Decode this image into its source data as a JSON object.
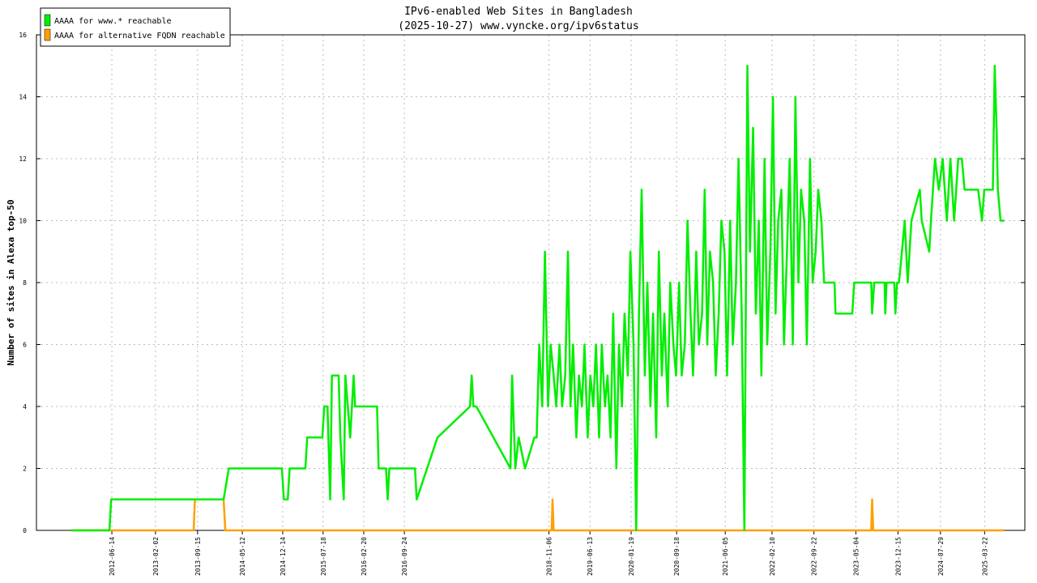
{
  "chart_data": {
    "type": "line",
    "title": "IPv6-enabled Web Sites in Bangladesh",
    "subtitle": "(2025-10-27) www.vyncke.org/ipv6status",
    "y_label": "Number of sites in Alexa top-50",
    "legend": "upper left",
    "grid": true,
    "xlim": [
      "2011-05-08",
      "2025-10-23"
    ],
    "xticks": [
      "2012-06-14",
      "2013-02-02",
      "2013-09-15",
      "2014-05-12",
      "2014-12-14",
      "2015-07-18",
      "2016-02-20",
      "2016-09-24",
      "2018-11-06",
      "2019-06-13",
      "2020-01-19",
      "2020-09-18",
      "2021-06-05",
      "2022-02-10",
      "2022-09-22",
      "2023-05-04",
      "2023-12-15",
      "2024-07-29",
      "2025-03-22"
    ],
    "ylim": [
      0,
      16
    ],
    "yticks": [
      0,
      2,
      4,
      6,
      8,
      10,
      12,
      14,
      16
    ],
    "series": [
      {
        "name": "AAAA for www.* reachable",
        "color": "#00ee00",
        "x": [
          "2011-11-10",
          "2012-06-01",
          "2012-06-10",
          "2014-02-01",
          "2014-03-01",
          "2014-12-10",
          "2014-12-20",
          "2015-01-10",
          "2015-01-20",
          "2015-04-14",
          "2015-04-24",
          "2015-07-14",
          "2015-07-24",
          "2015-08-10",
          "2015-08-25",
          "2015-09-03",
          "2015-10-09",
          "2015-10-18",
          "2015-11-05",
          "2015-11-14",
          "2015-12-10",
          "2015-12-28",
          "2016-01-05",
          "2016-05-01",
          "2016-05-10",
          "2016-06-18",
          "2016-06-27",
          "2016-07-06",
          "2016-11-20",
          "2016-11-29",
          "2017-03-20",
          "2017-09-10",
          "2017-09-19",
          "2017-09-28",
          "2017-10-14",
          "2018-04-14",
          "2018-04-23",
          "2018-05-10",
          "2018-05-28",
          "2018-07-01",
          "2018-08-20",
          "2018-09-01",
          "2018-09-15",
          "2018-10-01",
          "2018-10-15",
          "2018-11-01",
          "2018-11-15",
          "2018-12-01",
          "2018-12-15",
          "2019-01-01",
          "2019-01-15",
          "2019-02-01",
          "2019-02-15",
          "2019-03-01",
          "2019-03-15",
          "2019-04-01",
          "2019-04-15",
          "2019-05-01",
          "2019-05-15",
          "2019-06-01",
          "2019-06-15",
          "2019-07-01",
          "2019-07-15",
          "2019-08-01",
          "2019-08-15",
          "2019-09-01",
          "2019-09-15",
          "2019-10-01",
          "2019-10-15",
          "2019-11-01",
          "2019-11-15",
          "2019-12-01",
          "2019-12-15",
          "2020-01-01",
          "2020-01-15",
          "2020-02-01",
          "2020-02-15",
          "2020-03-01",
          "2020-03-15",
          "2020-04-01",
          "2020-04-15",
          "2020-05-01",
          "2020-05-15",
          "2020-06-01",
          "2020-06-15",
          "2020-07-01",
          "2020-07-15",
          "2020-08-01",
          "2020-08-15",
          "2020-09-01",
          "2020-09-15",
          "2020-10-01",
          "2020-10-15",
          "2020-11-01",
          "2020-11-15",
          "2020-12-01",
          "2020-12-15",
          "2021-01-01",
          "2021-01-15",
          "2021-02-01",
          "2021-02-15",
          "2021-03-01",
          "2021-03-15",
          "2021-04-01",
          "2021-04-15",
          "2021-05-01",
          "2021-05-15",
          "2021-06-01",
          "2021-06-15",
          "2021-07-01",
          "2021-07-15",
          "2021-08-01",
          "2021-08-15",
          "2021-09-01",
          "2021-09-15",
          "2021-10-01",
          "2021-10-15",
          "2021-11-01",
          "2021-11-15",
          "2021-12-01",
          "2021-12-15",
          "2022-01-01",
          "2022-01-15",
          "2022-02-01",
          "2022-02-15",
          "2022-03-01",
          "2022-03-15",
          "2022-04-01",
          "2022-04-15",
          "2022-05-01",
          "2022-05-15",
          "2022-06-01",
          "2022-06-15",
          "2022-07-01",
          "2022-07-15",
          "2022-08-01",
          "2022-08-15",
          "2022-09-01",
          "2022-09-15",
          "2022-10-01",
          "2022-10-15",
          "2022-11-01",
          "2022-11-15",
          "2022-12-01",
          "2023-01-10",
          "2023-01-15",
          "2023-04-15",
          "2023-04-25",
          "2023-07-25",
          "2023-07-30",
          "2023-08-10",
          "2023-10-05",
          "2023-10-08",
          "2023-10-15",
          "2023-11-25",
          "2023-12-01",
          "2023-12-10",
          "2023-12-20",
          "2024-01-05",
          "2024-01-20",
          "2024-02-05",
          "2024-02-25",
          "2024-04-10",
          "2024-04-20",
          "2024-05-30",
          "2024-06-08",
          "2024-06-30",
          "2024-07-20",
          "2024-08-10",
          "2024-09-01",
          "2024-09-20",
          "2024-10-10",
          "2024-11-01",
          "2024-11-20",
          "2024-12-05",
          "2025-02-15",
          "2025-03-08",
          "2025-03-20",
          "2025-05-05",
          "2025-05-15",
          "2025-05-25",
          "2025-06-01",
          "2025-06-15",
          "2025-07-05"
        ],
        "values": [
          0,
          0,
          1,
          1,
          2,
          2,
          1,
          1,
          2,
          2,
          3,
          3,
          4,
          4,
          1,
          5,
          5,
          3,
          1,
          5,
          3,
          5,
          4,
          4,
          2,
          2,
          1,
          2,
          2,
          1,
          3,
          4,
          5,
          4,
          4,
          2,
          5,
          2,
          3,
          2,
          3,
          3,
          6,
          4,
          9,
          4,
          6,
          5,
          4,
          6,
          4,
          5,
          9,
          4,
          6,
          3,
          5,
          4,
          6,
          3,
          5,
          4,
          6,
          3,
          6,
          4,
          5,
          3,
          7,
          2,
          6,
          4,
          7,
          5,
          9,
          6,
          0,
          7,
          11,
          5,
          8,
          4,
          7,
          3,
          9,
          5,
          7,
          4,
          8,
          6,
          5,
          8,
          5,
          6,
          10,
          7,
          5,
          9,
          6,
          7,
          11,
          6,
          9,
          8,
          5,
          7,
          10,
          9,
          5,
          10,
          6,
          8,
          12,
          7,
          0,
          15,
          9,
          13,
          7,
          10,
          5,
          12,
          6,
          9,
          14,
          7,
          10,
          11,
          6,
          9,
          12,
          6,
          14,
          8,
          11,
          10,
          6,
          12,
          8,
          9,
          11,
          10,
          8,
          8,
          8,
          7,
          7,
          8,
          8,
          7,
          8,
          8,
          7,
          8,
          8,
          7,
          8,
          8,
          9,
          10,
          8,
          10,
          11,
          10,
          9,
          10,
          12,
          11,
          12,
          10,
          12,
          10,
          12,
          12,
          11,
          11,
          10,
          11,
          11,
          15,
          13,
          11,
          10,
          10
        ]
      },
      {
        "name": "AAAA for alternative FQDN reachable",
        "color": "#ffa000",
        "x": [
          "2011-11-10",
          "2013-08-25",
          "2013-09-01",
          "2014-02-01",
          "2014-02-10",
          "2018-11-20",
          "2018-11-25",
          "2018-12-01",
          "2023-07-25",
          "2023-07-30",
          "2023-08-05",
          "2025-07-05"
        ],
        "values": [
          0,
          0,
          1,
          1,
          0,
          0,
          1,
          0,
          0,
          1,
          0,
          0
        ]
      }
    ]
  }
}
